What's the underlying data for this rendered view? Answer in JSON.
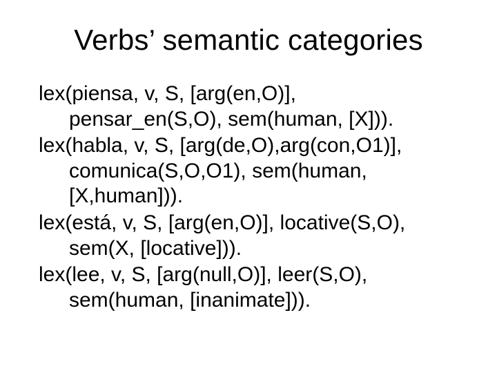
{
  "title": "Verbs’ semantic categories",
  "entries": [
    {
      "lines": [
        "lex(piensa, v, S, [arg(en,O)],",
        "pensar_en(S,O), sem(human, [X]))."
      ]
    },
    {
      "lines": [
        "lex(habla, v, S, [arg(de,O),arg(con,O1)],",
        "comunica(S,O,O1), sem(human,",
        "[X,human]))."
      ]
    },
    {
      "lines": [
        "lex(está, v, S, [arg(en,O)], locative(S,O),",
        "sem(X, [locative]))."
      ]
    },
    {
      "lines": [
        "lex(lee, v, S, [arg(null,O)], leer(S,O),",
        "sem(human, [inanimate]))."
      ]
    }
  ],
  "colors": {
    "background": "#ffffff",
    "text": "#000000"
  },
  "typography": {
    "title_fontsize": 42,
    "body_fontsize": 30,
    "font_family": "Arial"
  }
}
